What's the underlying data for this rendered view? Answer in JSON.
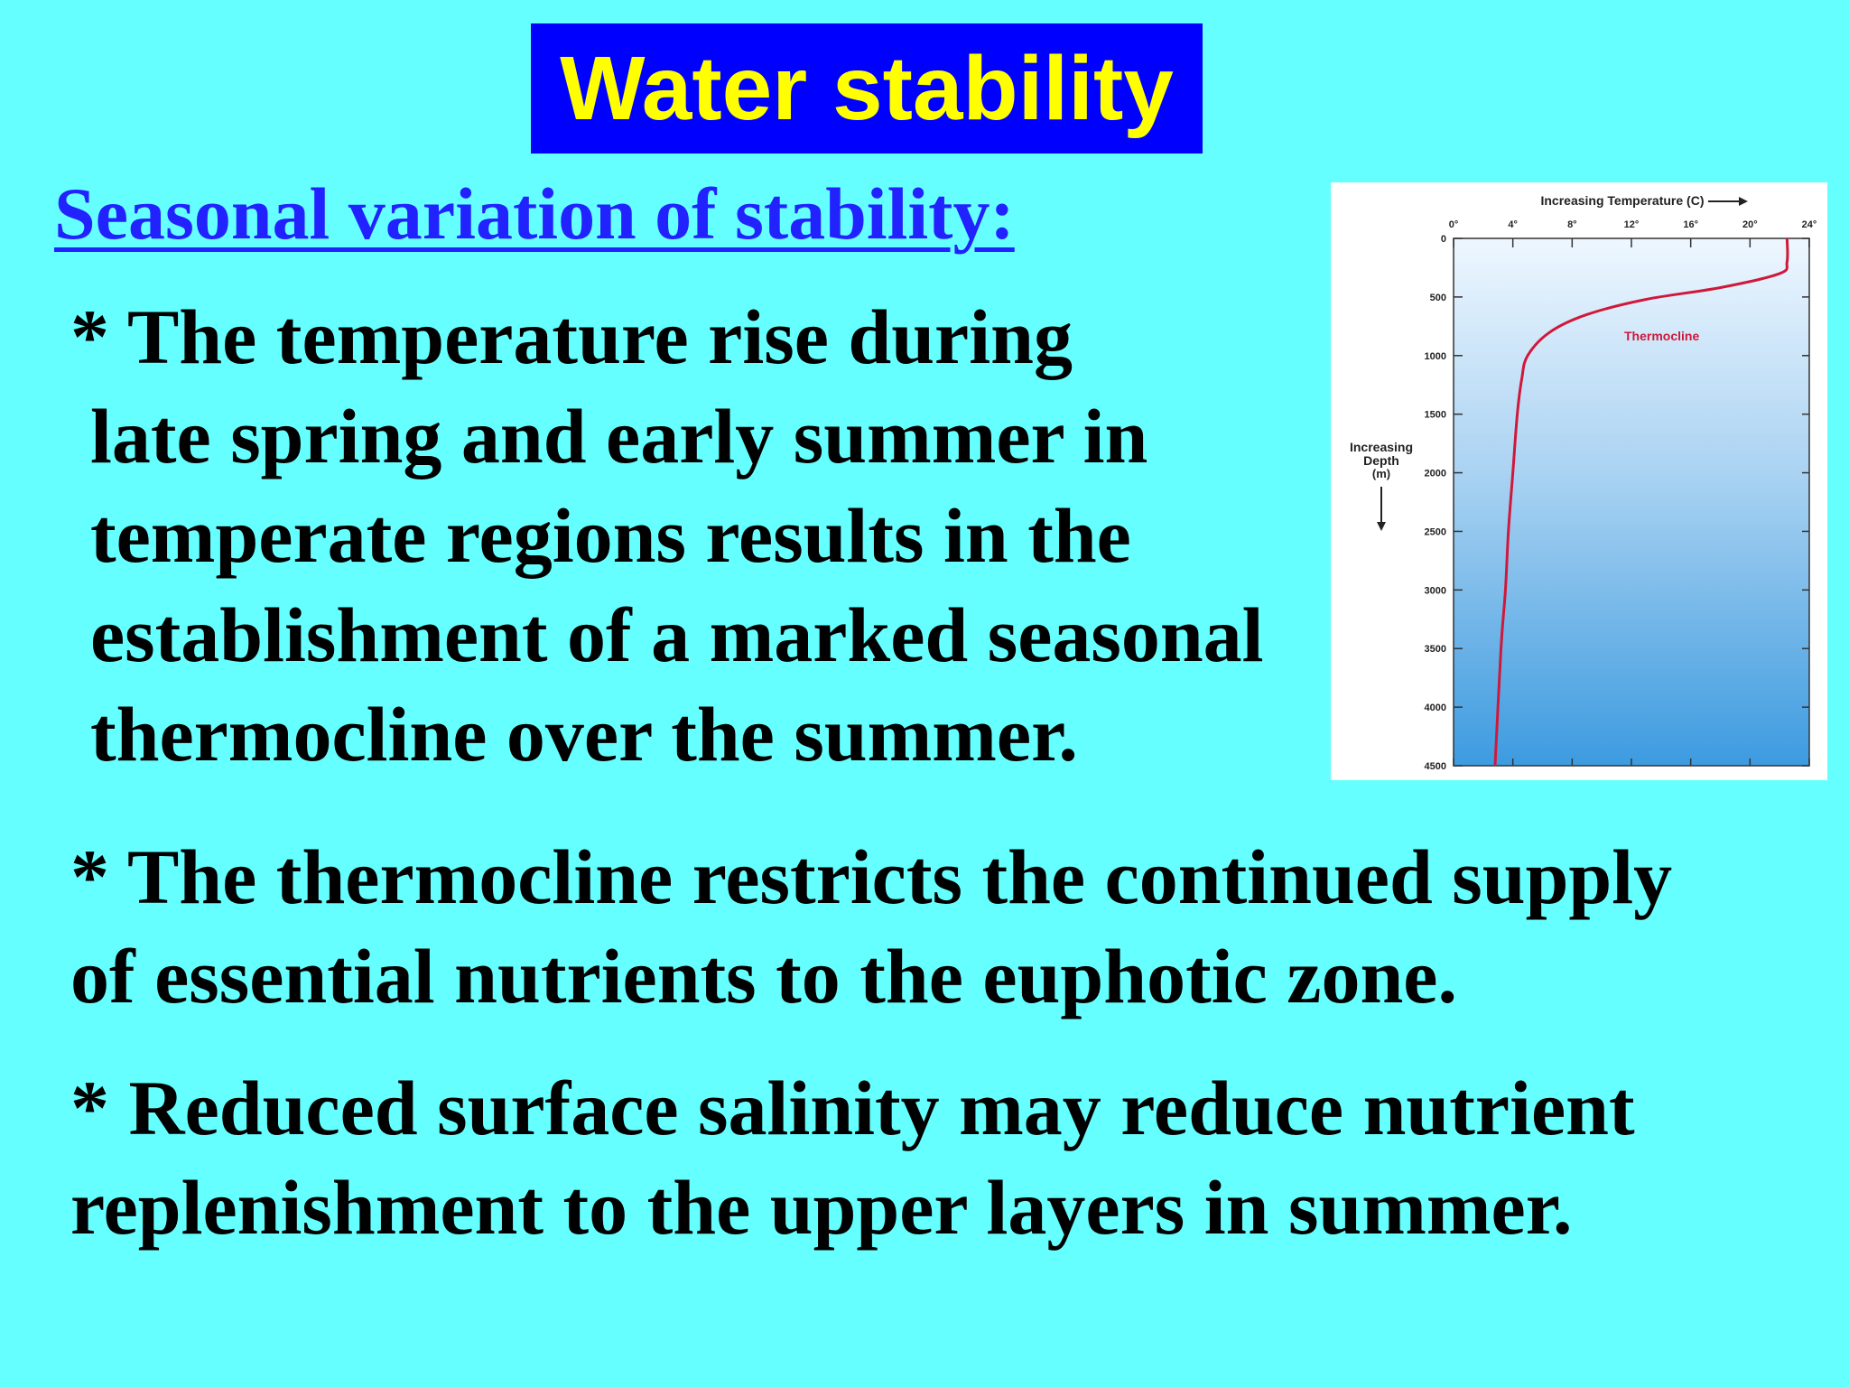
{
  "slide": {
    "title": "Water stability",
    "subtitle": "Seasonal variation of stability:",
    "bullets": [
      {
        "lines": [
          "* The temperature rise during",
          "late spring and early summer in",
          "temperate regions results in the",
          "establishment of a marked seasonal",
          "thermocline over the summer."
        ]
      },
      {
        "lines": [
          "* The thermocline restricts the continued supply",
          "of essential nutrients to the euphotic zone."
        ]
      },
      {
        "lines": [
          "* Reduced surface salinity may reduce nutrient",
          "replenishment to the upper layers in summer."
        ]
      }
    ]
  },
  "colors": {
    "background": "#66ffff",
    "title_box": "#0000ff",
    "title_text": "#ffff00",
    "subtitle_text": "#2222ff",
    "body_text": "#000000",
    "curve": "#d0183a"
  },
  "chart_data": {
    "type": "line",
    "xlabel": "Increasing Temperature (C)",
    "ylabel": "Increasing Depth (m)",
    "x_ticks": [
      "0°",
      "4°",
      "8°",
      "12°",
      "16°",
      "20°",
      "24°"
    ],
    "y_ticks": [
      "0",
      "500",
      "1000",
      "1500",
      "2000",
      "2500",
      "3000",
      "3500",
      "4000",
      "4500"
    ],
    "xlim": [
      0,
      24
    ],
    "ylim": [
      0,
      4500
    ],
    "y_inverted": true,
    "annotations": [
      "Thermocline"
    ],
    "series": [
      {
        "x": [
          22.5,
          22.5,
          22.0,
          18.0,
          13.0,
          9.0,
          6.5,
          5.0,
          4.6,
          4.3,
          4.0,
          3.7,
          3.5,
          3.2,
          2.8
        ],
        "y": [
          0,
          200,
          300,
          420,
          520,
          650,
          800,
          1000,
          1200,
          1500,
          2000,
          2500,
          3000,
          3500,
          4500
        ]
      }
    ]
  }
}
